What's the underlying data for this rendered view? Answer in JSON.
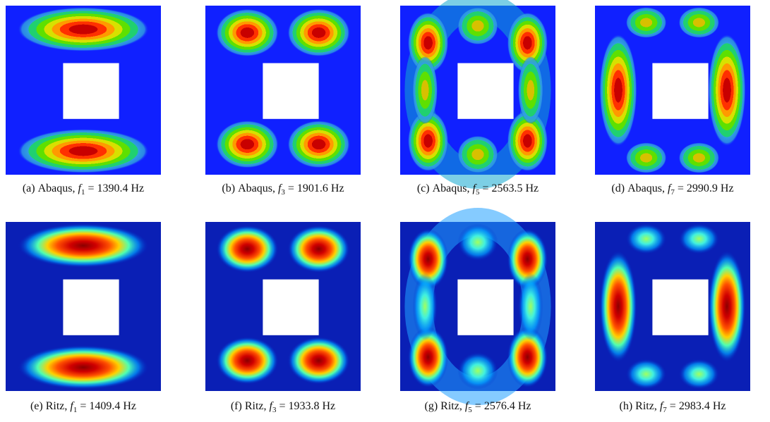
{
  "figure": {
    "panels": [
      {
        "label": "(a)",
        "method": "Abaqus,",
        "symbol": "f",
        "index": "1",
        "value": "= 1390.4 Hz"
      },
      {
        "label": "(b)",
        "method": "Abaqus,",
        "symbol": "f",
        "index": "3",
        "value": "= 1901.6 Hz"
      },
      {
        "label": "(c)",
        "method": "Abaqus,",
        "symbol": "f",
        "index": "5",
        "value": "= 2563.5 Hz"
      },
      {
        "label": "(d)",
        "method": "Abaqus,",
        "symbol": "f",
        "index": "7",
        "value": "= 2990.9 Hz"
      },
      {
        "label": "(e)",
        "method": "Ritz,",
        "symbol": "f",
        "index": "1",
        "value": "= 1409.4 Hz"
      },
      {
        "label": "(f)",
        "method": "Ritz,",
        "symbol": "f",
        "index": "3",
        "value": "= 1933.8 Hz"
      },
      {
        "label": "(g)",
        "method": "Ritz,",
        "symbol": "f",
        "index": "5",
        "value": "= 2576.4 Hz"
      },
      {
        "label": "(h)",
        "method": "Ritz,",
        "symbol": "f",
        "index": "7",
        "value": "= 2983.4 Hz"
      }
    ]
  }
}
